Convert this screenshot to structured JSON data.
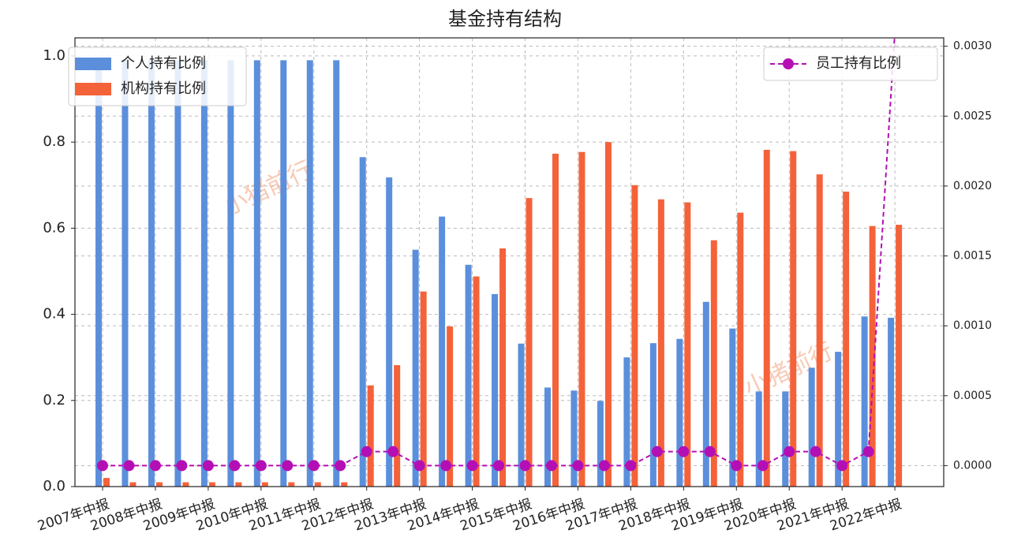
{
  "chart_data": {
    "type": "bar-line",
    "title": "基金持有结构",
    "categories": [
      "2007年中报",
      null,
      "2008年中报",
      null,
      "2009年中报",
      null,
      "2010年中报",
      null,
      "2011年中报",
      null,
      "2012年中报",
      null,
      "2013年中报",
      null,
      "2014年中报",
      null,
      "2015年中报",
      null,
      "2016年中报",
      null,
      "2017年中报",
      null,
      "2018年中报",
      null,
      "2019年中报",
      null,
      "2020年中报",
      null,
      "2021年中报",
      null,
      "2022年中报"
    ],
    "series": [
      {
        "name": "个人持有比例",
        "type": "bar",
        "color": "#5b8fdc",
        "values": [
          0.98,
          0.99,
          0.99,
          0.99,
          0.99,
          0.99,
          0.99,
          0.99,
          0.99,
          0.99,
          0.765,
          0.718,
          0.55,
          0.627,
          0.515,
          0.447,
          0.332,
          0.23,
          0.223,
          0.199,
          0.3,
          0.333,
          0.343,
          0.429,
          0.367,
          0.221,
          0.221,
          0.276,
          0.313,
          0.395,
          0.392
        ]
      },
      {
        "name": "机构持有比例",
        "type": "bar",
        "color": "#f4623a",
        "values": [
          0.02,
          0.01,
          0.01,
          0.01,
          0.01,
          0.01,
          0.01,
          0.01,
          0.01,
          0.01,
          0.235,
          0.282,
          0.453,
          0.372,
          0.488,
          0.553,
          0.67,
          0.773,
          0.777,
          0.8,
          0.7,
          0.667,
          0.66,
          0.572,
          0.636,
          0.782,
          0.779,
          0.725,
          0.685,
          0.605,
          0.608
        ]
      },
      {
        "name": "员工持有比例",
        "type": "line",
        "axis": "y2",
        "color": "#b40fb4",
        "values": [
          0,
          0,
          0,
          0,
          0,
          0,
          0,
          0,
          0,
          0,
          0.0001,
          0.0001,
          0,
          0,
          0,
          0,
          0,
          0,
          0,
          0,
          0,
          0.0001,
          0.0001,
          0.0001,
          0,
          0,
          0.0001,
          0.0001,
          0,
          0.0001,
          0.0031
        ]
      }
    ],
    "ylim": [
      0,
      1.042
    ],
    "yticks": [
      {
        "value": 0,
        "label": "0.0"
      },
      {
        "value": 0.2,
        "label": "0.2"
      },
      {
        "value": 0.4,
        "label": "0.4"
      },
      {
        "value": 0.6,
        "label": "0.6"
      },
      {
        "value": 0.8,
        "label": "0.8"
      },
      {
        "value": 1,
        "label": "1.0"
      }
    ],
    "y2lim": [
      -0.00015,
      0.00306
    ],
    "y2ticks": [
      {
        "value": 0,
        "label": "0.0000"
      },
      {
        "value": 0.0005,
        "label": "0.0005"
      },
      {
        "value": 0.001,
        "label": "0.0010"
      },
      {
        "value": 0.0015,
        "label": "0.0015"
      },
      {
        "value": 0.002,
        "label": "0.0020"
      },
      {
        "value": 0.0025,
        "label": "0.0025"
      },
      {
        "value": 0.003,
        "label": "0.0030"
      }
    ],
    "grid": true,
    "legend": "upper left",
    "legend2": "upper right",
    "annotations": [
      "小猪前行",
      "小猪前行"
    ]
  }
}
